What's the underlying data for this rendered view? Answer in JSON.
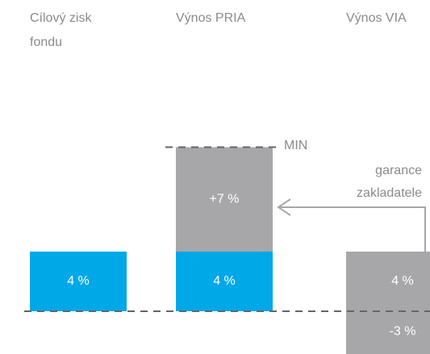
{
  "chart_data": {
    "type": "stacked-bar",
    "categories": [
      "Cílový zisk fondu",
      "Výnos PRIA",
      "Výnos VIA"
    ],
    "series": [
      {
        "colors": [
          "#00a8e8",
          "#00a8e8",
          "#a7a7a9"
        ],
        "values": [
          4,
          4,
          4
        ],
        "value_labels": [
          "4 %",
          "4 %",
          "4 %"
        ]
      },
      {
        "colors": [
          null,
          "#a7a7a9",
          "#a7a7a9"
        ],
        "values": [
          null,
          7,
          -3
        ],
        "value_labels": [
          null,
          "+7 %",
          "-3 %"
        ]
      }
    ],
    "annotations": {
      "min": "MIN",
      "guarantee": "garance zakladatele"
    }
  }
}
